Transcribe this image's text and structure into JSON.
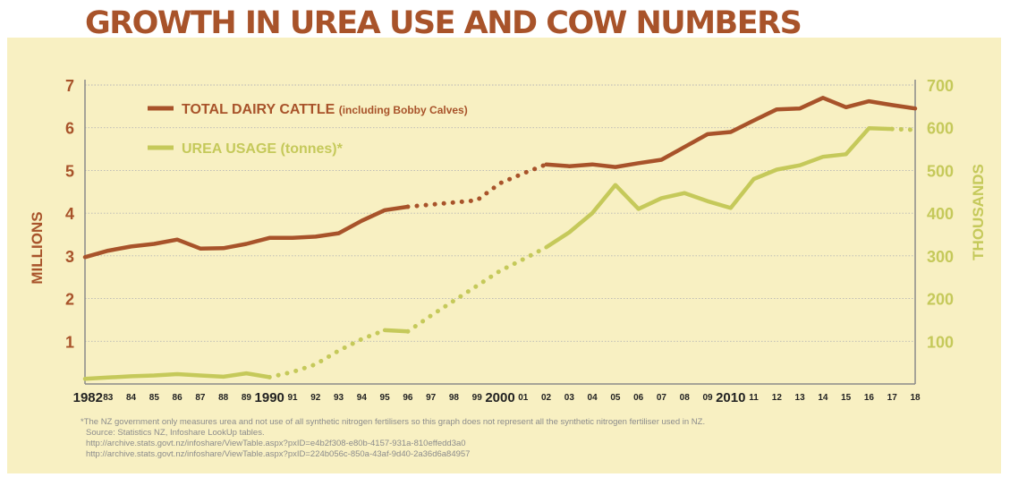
{
  "title": "GROWTH IN UREA USE AND COW NUMBERS",
  "colors": {
    "cattle": "#a8532a",
    "urea": "#c5c95a",
    "background": "#f8f0c2",
    "grid": "#b5b5b5",
    "axis": "#8a8a8a"
  },
  "chart_data": {
    "type": "line",
    "x": [
      1982,
      1983,
      1984,
      1985,
      1986,
      1987,
      1988,
      1989,
      1990,
      1991,
      1992,
      1993,
      1994,
      1995,
      1996,
      1997,
      1998,
      1999,
      2000,
      2001,
      2002,
      2003,
      2004,
      2005,
      2006,
      2007,
      2008,
      2009,
      2010,
      2011,
      2012,
      2013,
      2014,
      2015,
      2016,
      2017,
      2018
    ],
    "x_tick_labels": [
      "1982",
      "83",
      "84",
      "85",
      "86",
      "87",
      "88",
      "89",
      "1990",
      "91",
      "92",
      "93",
      "94",
      "95",
      "96",
      "97",
      "98",
      "99",
      "2000",
      "01",
      "02",
      "03",
      "04",
      "05",
      "06",
      "07",
      "08",
      "09",
      "2010",
      "11",
      "12",
      "13",
      "14",
      "15",
      "16",
      "17",
      "18"
    ],
    "xlim": [
      1982,
      2018
    ],
    "ylabel_left": "MILLIONS",
    "ylim_left": [
      0,
      7
    ],
    "yticks_left": [
      "1",
      "2",
      "3",
      "4",
      "5",
      "6",
      "7"
    ],
    "ylabel_right": "THOUSANDS",
    "ylim_right": [
      0,
      700
    ],
    "yticks_right": [
      "100",
      "200",
      "300",
      "400",
      "500",
      "600",
      "700"
    ],
    "grid": true,
    "legend_position": "top-left",
    "series": [
      {
        "name": "TOTAL DAIRY CATTLE",
        "name_suffix": "(including Bobby Calves)",
        "axis": "left",
        "values": [
          2.97,
          3.12,
          3.22,
          3.28,
          3.38,
          3.17,
          3.18,
          3.28,
          3.42,
          3.42,
          3.45,
          3.53,
          3.82,
          4.07,
          4.15,
          4.2,
          4.25,
          4.3,
          4.7,
          4.93,
          5.14,
          5.1,
          5.14,
          5.08,
          5.17,
          5.25,
          5.55,
          5.85,
          5.9,
          6.17,
          6.43,
          6.45,
          6.7,
          6.48,
          6.62,
          6.53,
          6.45
        ],
        "dotted_ranges": [
          [
            1996,
            2002
          ]
        ]
      },
      {
        "name": "UREA USAGE (tonnes)*",
        "axis": "right",
        "values": [
          12,
          15,
          18,
          20,
          23,
          20,
          17,
          25,
          16,
          28,
          46,
          78,
          105,
          126,
          123,
          160,
          195,
          230,
          265,
          292,
          320,
          355,
          400,
          466,
          410,
          435,
          447,
          428,
          412,
          480,
          502,
          512,
          532,
          538,
          599,
          597,
          595
        ],
        "dotted_ranges": [
          [
            1990,
            1995
          ],
          [
            1996,
            2002
          ],
          [
            2017,
            2018
          ]
        ]
      }
    ]
  },
  "footnotes": [
    "*The NZ government only measures urea and not use of all synthetic nitrogen fertilisers so this graph does not represent all the synthetic nitrogen fertiliser used in NZ.",
    "Source:  Statistics NZ, Infoshare LookUp tables.",
    "http://archive.stats.govt.nz/infoshare/ViewTable.aspx?pxID=e4b2f308-e80b-4157-931a-810effedd3a0",
    "http://archive.stats.govt.nz/infoshare/ViewTable.aspx?pxID=224b056c-850a-43af-9d40-2a36d6a84957"
  ]
}
